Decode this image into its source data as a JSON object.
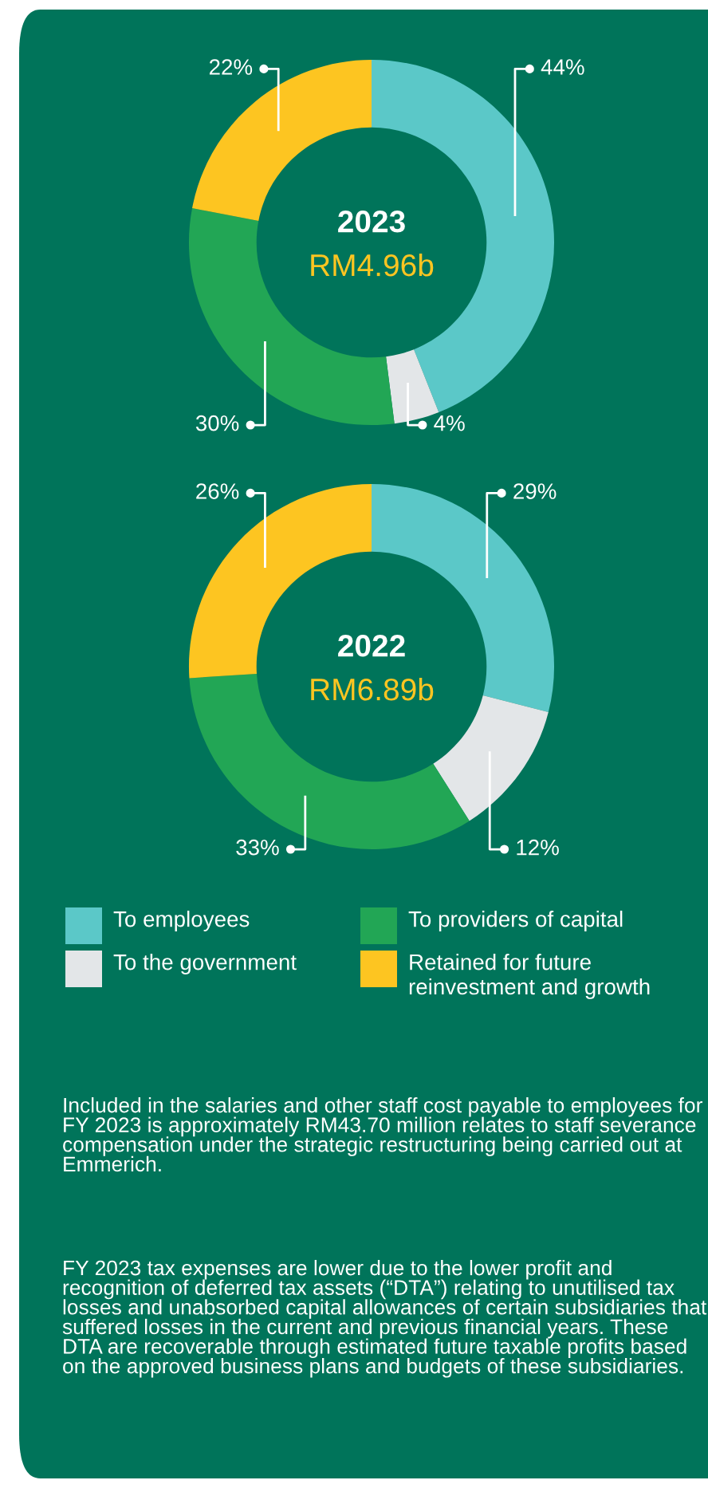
{
  "chart_data": [
    {
      "type": "donut",
      "title": "2023",
      "subtitle": "RM4.96b",
      "categories": [
        "To employees",
        "To the government",
        "To providers of capital",
        "Retained for future reinvestment and growth"
      ],
      "values": [
        44,
        4,
        30,
        22
      ],
      "colors": [
        "#5bc8c8",
        "#e3e6e8",
        "#22a655",
        "#fdc521"
      ],
      "value_labels": [
        "44%",
        "4%",
        "30%",
        "22%"
      ],
      "legend": "bottom"
    },
    {
      "type": "donut",
      "title": "2022",
      "subtitle": "RM6.89b",
      "categories": [
        null,
        null,
        null,
        null
      ],
      "values": [
        29,
        12,
        33,
        26
      ],
      "colors": [
        "#5bc8c8",
        "#e3e6e8",
        "#22a655",
        "#fdc521"
      ],
      "value_labels": [
        "29%",
        "12%",
        "33%",
        "26%"
      ],
      "annotations": [
        "Included in the salaries and other staff cost payable to employees for FY 2023 is approximately RM43.70 million relates to staff severance compensation under the strategic restructuring being carried out at Emmerich.",
        "FY 2023 tax expenses are lower due to the lower profit and recognition of deferred tax assets (“DTA”) relating to unutilised tax losses and unabsorbed capital allowances of certain subsidiaries that suffered losses in the current and previous financial years. These DTA are recoverable through estimated future taxable profits based on the approved business plans and budgets of these subsidiaries."
      ]
    }
  ]
}
